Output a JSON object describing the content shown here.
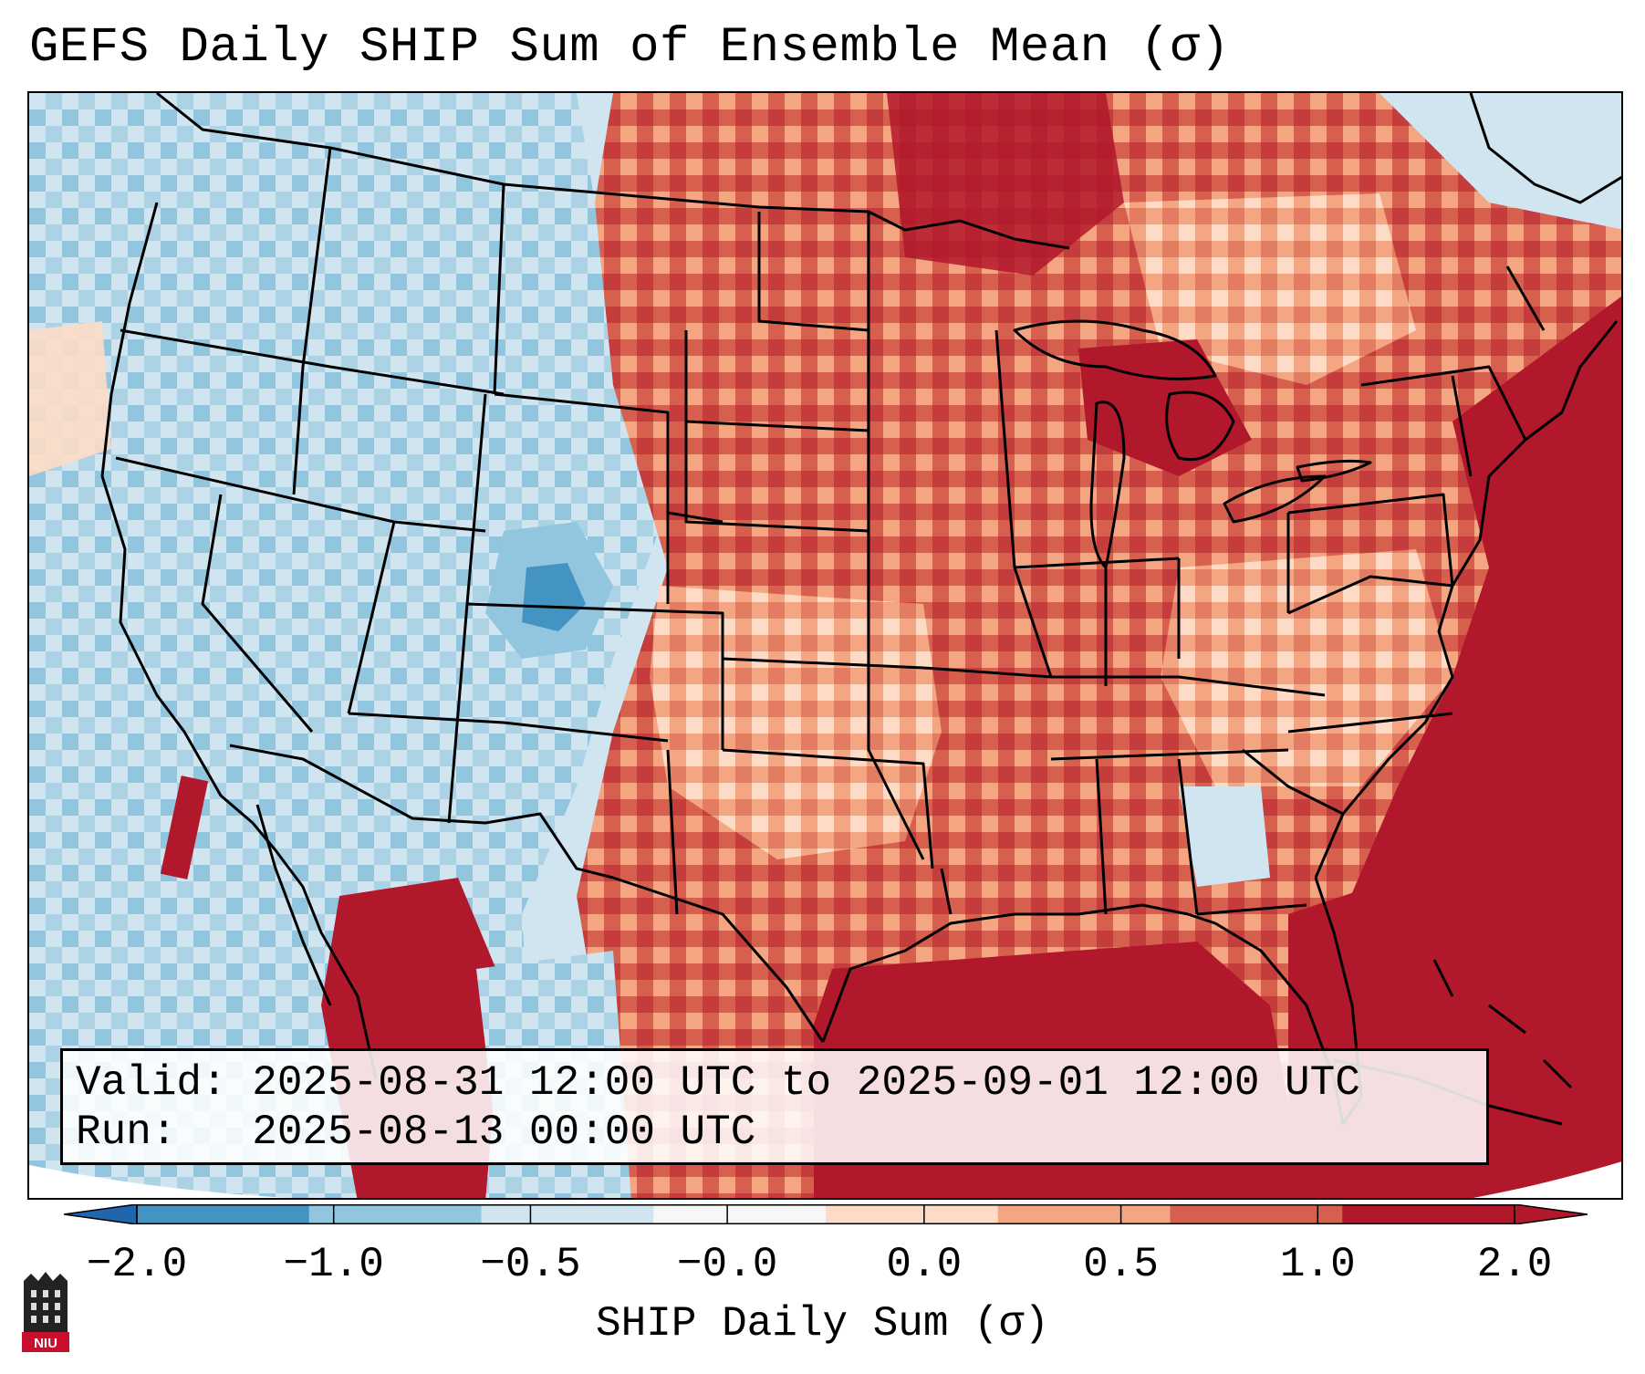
{
  "title": "GEFS Daily SHIP Sum of Ensemble Mean (σ)",
  "info": {
    "valid_label": "Valid:",
    "valid_value": "2025-08-31 12:00 UTC to 2025-09-01 12:00 UTC",
    "run_label": "Run:",
    "run_value": "2025-08-13 00:00 UTC"
  },
  "colorbar": {
    "label": "SHIP Daily Sum (σ)",
    "ticks": [
      "−2.0",
      "−1.0",
      "−0.5",
      "−0.0",
      "0.0",
      "0.5",
      "1.0",
      "2.0"
    ],
    "colors": [
      "#4393c3",
      "#92c5de",
      "#d1e5f0",
      "#f7f7f7",
      "#fddbc7",
      "#f4a582",
      "#d6604d",
      "#b2182b"
    ],
    "extend_low_color": "#2166ac",
    "extend_high_color": "#b2182b"
  },
  "logo": {
    "text": "NIU",
    "icon": "niu-logo-icon"
  },
  "map": {
    "region": "Contiguous United States with southern Canada, northern Mexico, Gulf of Mexico and western Atlantic",
    "features": [
      "state-borders",
      "country-borders",
      "coastlines",
      "great-lakes",
      "cuba-outline"
    ],
    "colors": {
      "ocean_background": "#d1e5f0",
      "border_lines": "#000000"
    }
  }
}
